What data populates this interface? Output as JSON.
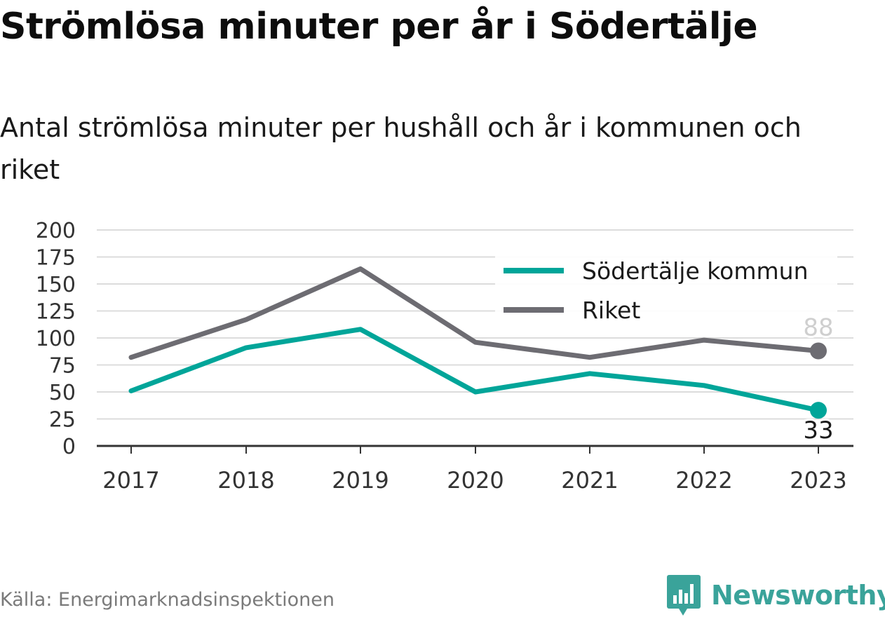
{
  "title": "Strömlösa minuter per år i Södertälje",
  "subtitle": "Antal strömlösa minuter per hushåll och år i kommunen och riket",
  "source": "Källa: Energimarknadsinspektionen",
  "brand": {
    "name": "Newsworthy",
    "icon": "newsworthy-logo-icon",
    "color": "#3aa39a"
  },
  "chart_data": {
    "type": "line",
    "x": [
      "2017",
      "2018",
      "2019",
      "2020",
      "2021",
      "2022",
      "2023"
    ],
    "ylim": [
      0,
      200
    ],
    "yticks": [
      "0",
      "25",
      "50",
      "75",
      "100",
      "125",
      "150",
      "175",
      "200"
    ],
    "grid": true,
    "legend_position": "top-right",
    "series": [
      {
        "name": "Södertälje kommun",
        "color": "#00a599",
        "values": [
          51,
          91,
          108,
          50,
          67,
          56,
          33
        ],
        "end_label": "33"
      },
      {
        "name": "Riket",
        "color": "#6d6c72",
        "values": [
          82,
          117,
          164,
          96,
          82,
          98,
          88
        ],
        "end_label": "88"
      }
    ]
  }
}
